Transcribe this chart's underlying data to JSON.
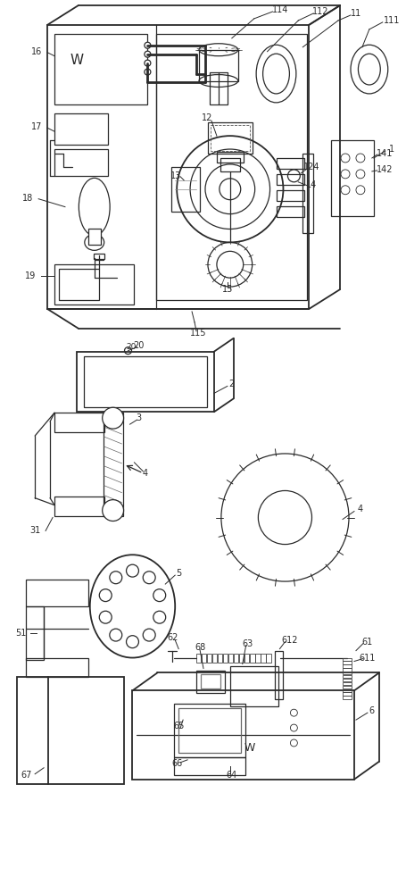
{
  "bg_color": "#ffffff",
  "lc": "#2a2a2a",
  "fig_width": 4.56,
  "fig_height": 10.0
}
